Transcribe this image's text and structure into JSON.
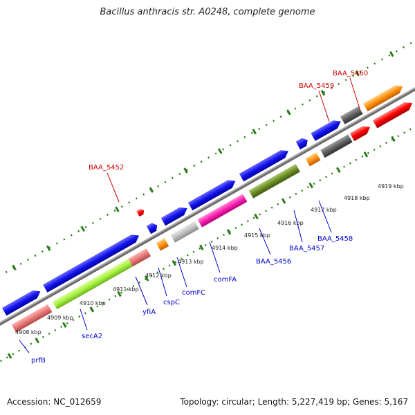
{
  "title": "Bacillus anthracis str. A0248, complete genome",
  "footer": {
    "accession": "Accession: NC_012659",
    "topology": "Topology: circular; Length: 5,227,419 bp; Genes: 5,167"
  },
  "colors": {
    "label_above": "#cc0000",
    "label_below": "#0000cc",
    "tick": "#2a7a1a",
    "backbone": "#808080"
  },
  "ticks": [
    {
      "label": "4908 kbp"
    },
    {
      "label": "4909 kbp"
    },
    {
      "label": "4910 kbp"
    },
    {
      "label": "4911 kbp"
    },
    {
      "label": "4912 kbp"
    },
    {
      "label": "4913 kbp"
    },
    {
      "label": "4914 kbp"
    },
    {
      "label": "4915 kbp"
    },
    {
      "label": "4916 kbp"
    },
    {
      "label": "4917 kbp"
    },
    {
      "label": "4918 kbp"
    },
    {
      "label": "4919 kbp"
    }
  ],
  "labels_above": [
    {
      "text": "BAA_5452",
      "color": "#cc0000"
    },
    {
      "text": "BAA_5459",
      "color": "#cc0000"
    },
    {
      "text": "BAA_5460",
      "color": "#cc0000"
    }
  ],
  "labels_below": [
    {
      "text": "prfB",
      "color": "#0000cc"
    },
    {
      "text": "secA2",
      "color": "#0000cc"
    },
    {
      "text": "yfiA",
      "color": "#0000cc"
    },
    {
      "text": "cspC",
      "color": "#0000cc"
    },
    {
      "text": "comFC",
      "color": "#0000cc"
    },
    {
      "text": "comFA",
      "color": "#0000cc"
    },
    {
      "text": "BAA_5456",
      "color": "#0000cc"
    },
    {
      "text": "BAA_5457",
      "color": "#0000cc"
    },
    {
      "text": "BAA_5458",
      "color": "#0000cc"
    }
  ]
}
